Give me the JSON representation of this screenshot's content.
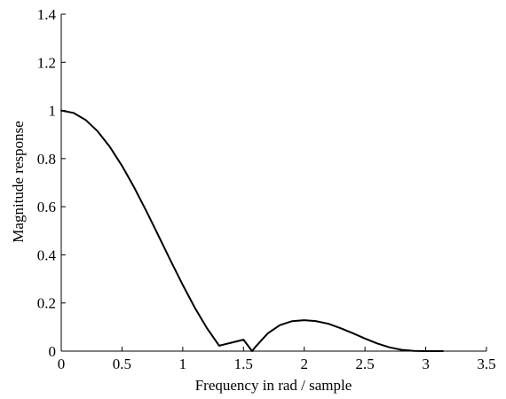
{
  "chart_data": {
    "type": "line",
    "title": "",
    "xlabel": "Frequency in rad / sample",
    "ylabel": "Magnitude response",
    "xlim": [
      0,
      3.5
    ],
    "ylim": [
      0,
      1.4
    ],
    "xticks": [
      0,
      0.5,
      1,
      1.5,
      2,
      2.5,
      3,
      3.5
    ],
    "xtick_labels": [
      "0",
      "0.5",
      "1",
      "1.5",
      "2",
      "2.5",
      "3",
      "3.5"
    ],
    "yticks": [
      0,
      0.2,
      0.4,
      0.6,
      0.8,
      1,
      1.2,
      1.4
    ],
    "ytick_labels": [
      "0",
      "0.2",
      "0.4",
      "0.6",
      "0.8",
      "1",
      "1.2",
      "1.4"
    ],
    "grid": false,
    "box": "left-bottom",
    "line_color": "#000000",
    "series": [
      {
        "x": [
          0,
          0.1,
          0.2,
          0.3,
          0.4,
          0.5,
          0.6,
          0.7,
          0.8,
          0.9,
          1.0,
          1.1,
          1.2,
          1.3,
          1.4,
          1.5,
          1.5708,
          1.6,
          1.7,
          1.8,
          1.9,
          2.0,
          2.0944,
          2.2,
          2.3,
          2.4,
          2.5,
          2.6,
          2.7,
          2.8,
          2.9,
          3.0,
          3.1,
          3.1416
        ],
        "y": [
          1.0,
          0.9901,
          0.9608,
          0.9131,
          0.8488,
          0.7703,
          0.6804,
          0.5823,
          0.4796,
          0.3759,
          0.275,
          0.1802,
          0.095,
          0.0225,
          0.0349,
          0.0474,
          0.0,
          0.0189,
          0.0741,
          0.108,
          0.1244,
          0.1284,
          0.125,
          0.1133,
          0.0952,
          0.0743,
          0.0522,
          0.032,
          0.0158,
          0.0055,
          0.0009,
          0.0,
          0.0,
          0.0
        ]
      }
    ]
  }
}
